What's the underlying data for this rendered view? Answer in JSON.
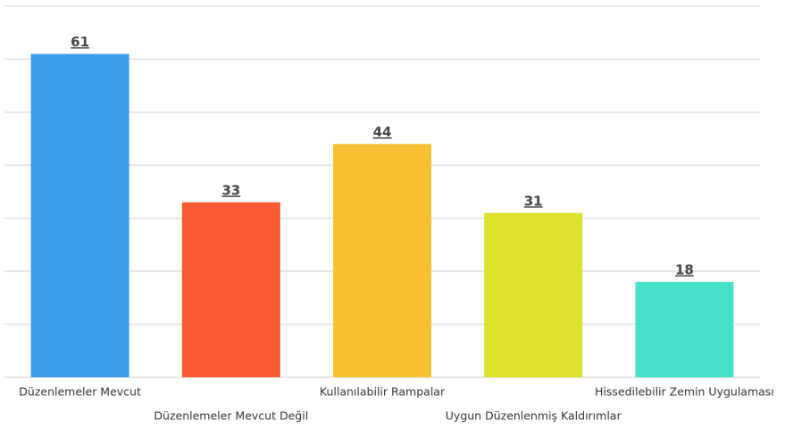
{
  "chart_data": {
    "type": "bar",
    "categories": [
      "Düzenlemeler Mevcut",
      "Düzenlemeler Mevcut Değil",
      "Kullanılabilir Rampalar",
      "Uygun Düzenlenmiş Kaldırımlar",
      "Hissedilebilir Zemin Uygulaması"
    ],
    "values": [
      61,
      33,
      44,
      31,
      18
    ],
    "colors": [
      "#3a9ee8",
      "#f75a35",
      "#f7c132",
      "#dce22c",
      "#44e0c8"
    ],
    "ylim": [
      0,
      70
    ],
    "yticks": [
      0,
      10,
      20,
      30,
      40,
      50,
      60,
      70
    ],
    "grid": true
  }
}
